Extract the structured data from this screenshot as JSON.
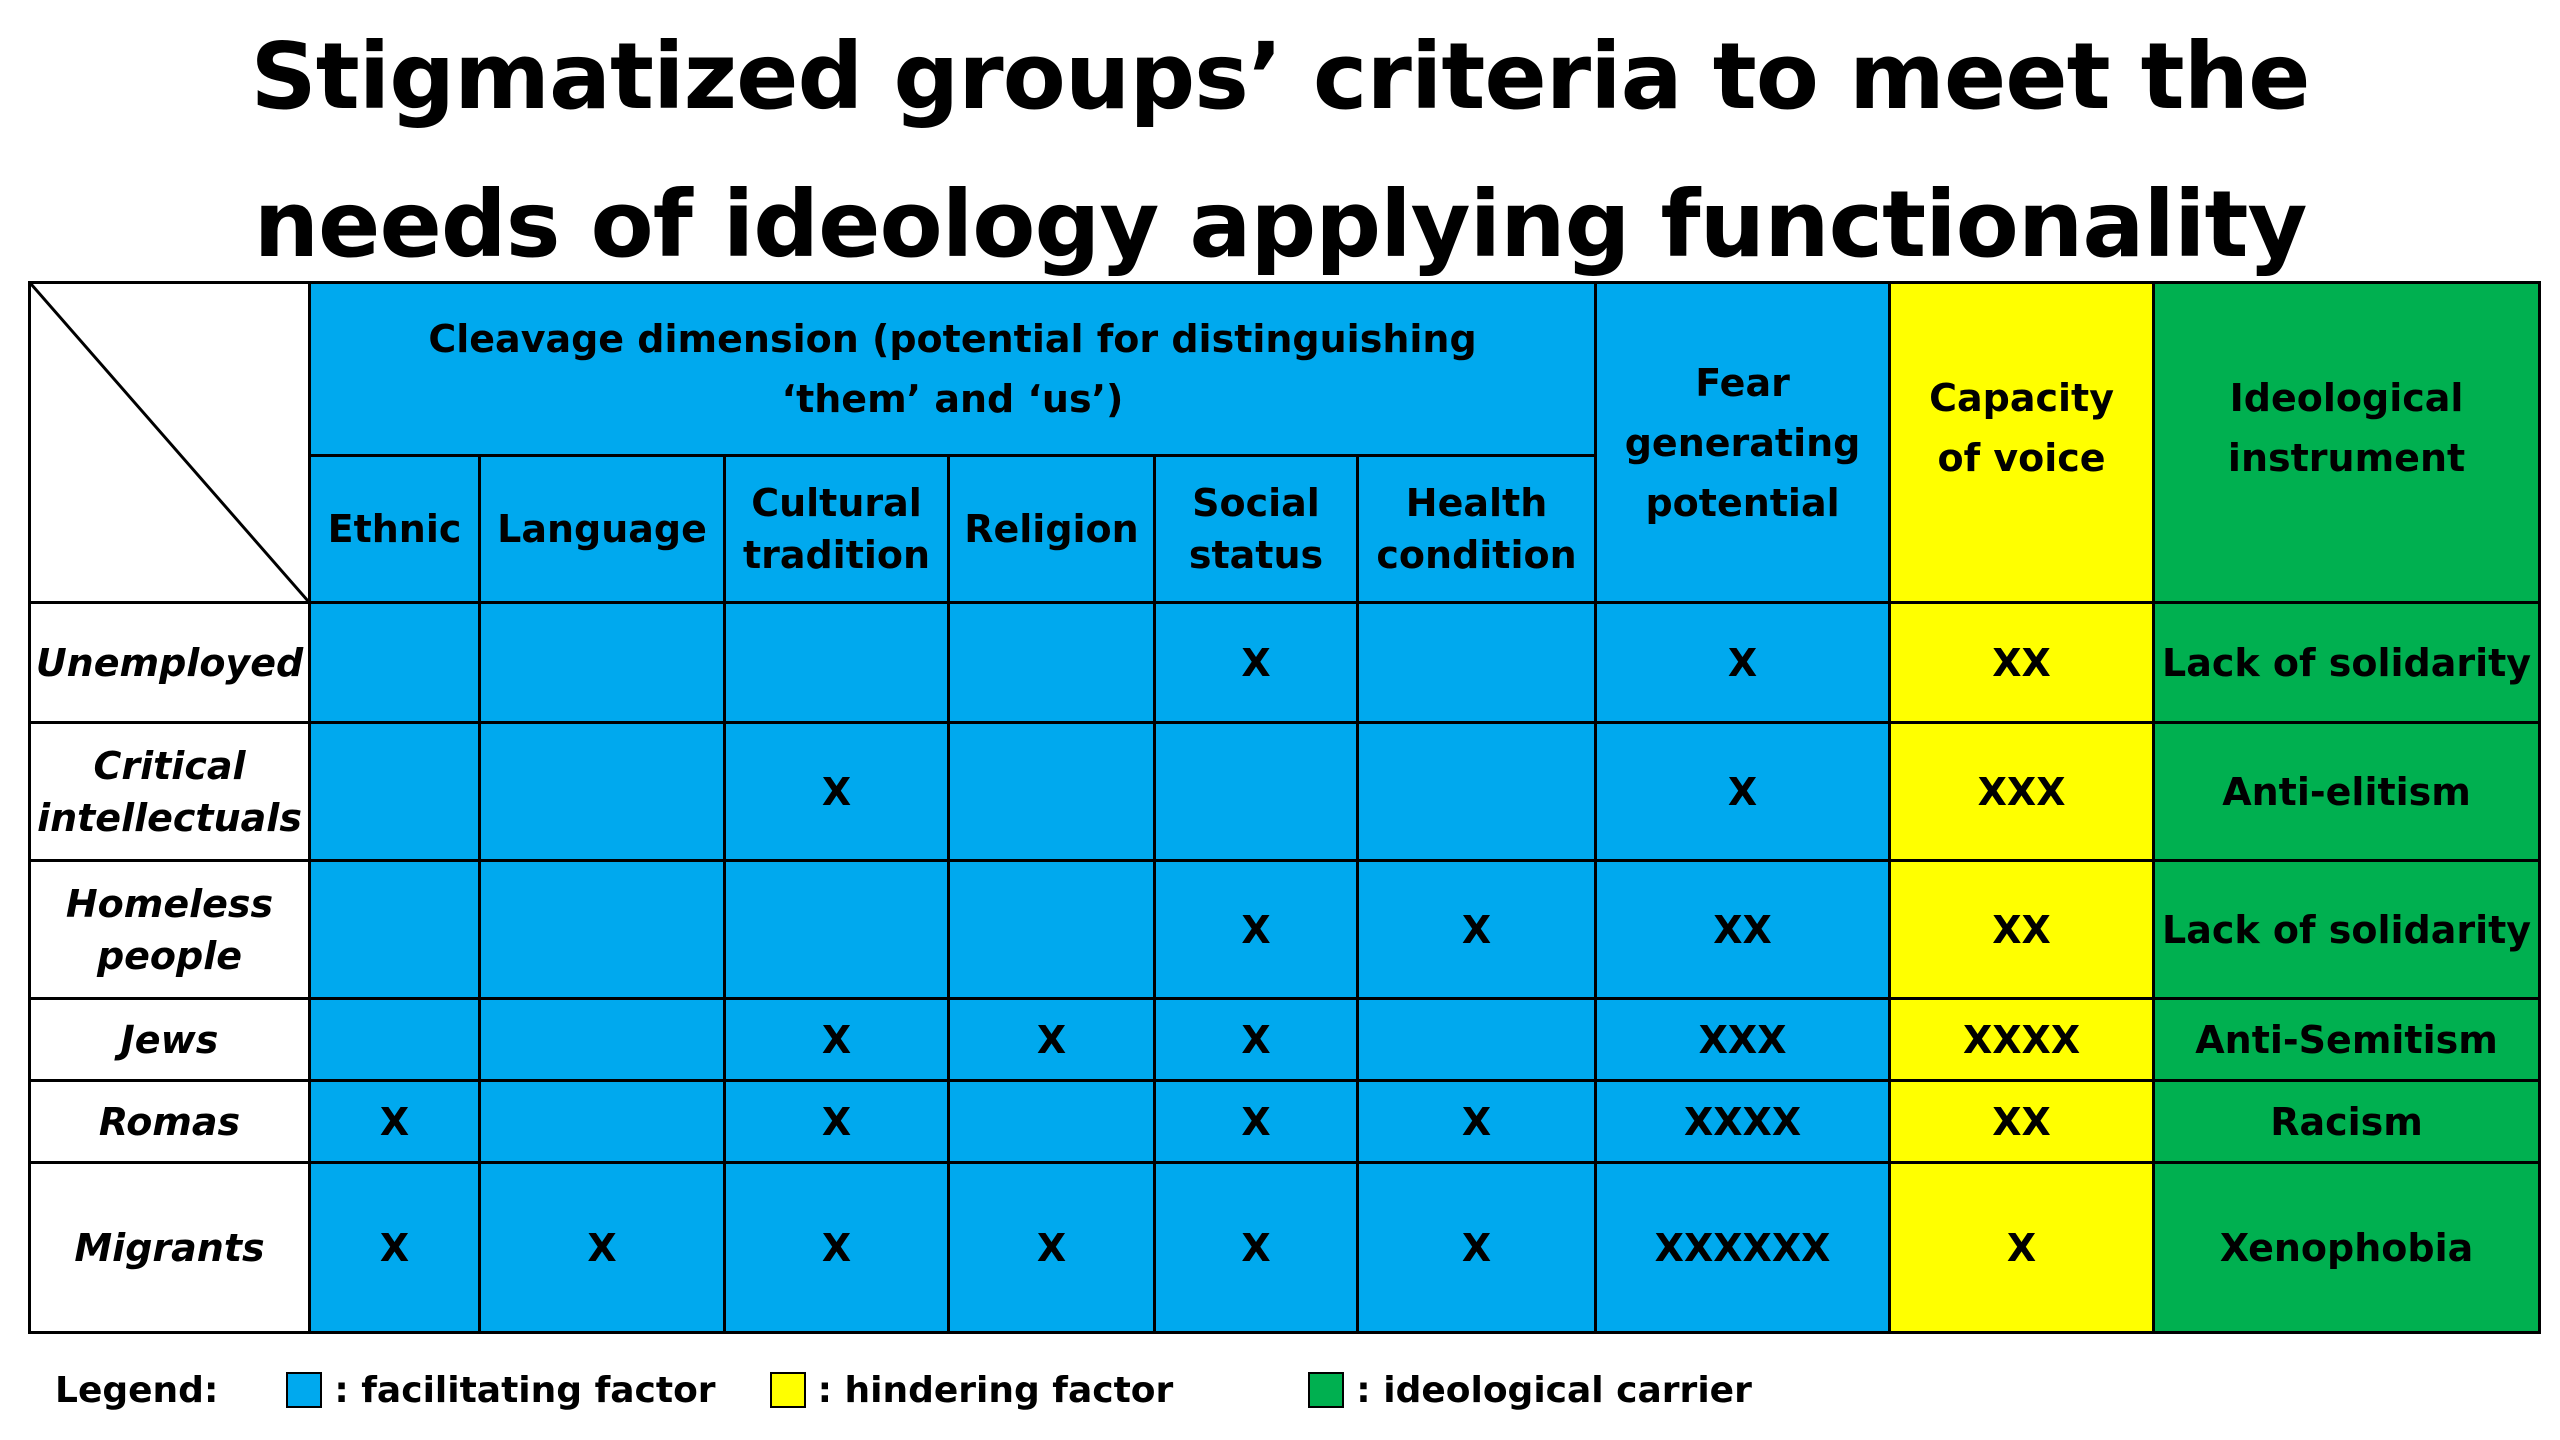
{
  "title": {
    "line1": "Stigmatized groups’ criteria to meet the",
    "line2": "needs of ideology applying functionality"
  },
  "header": {
    "cleavage": "Cleavage dimension (potential for distinguishing ‘them’ and ‘us’)",
    "sub": {
      "ethnic": "Ethnic",
      "language": "Language",
      "cultural": "Cultural tradition",
      "religion": "Religion",
      "social": "Social status",
      "health": "Health condition"
    },
    "fear": "Fear generating potential",
    "voice": "Capacity of voice",
    "instrument": "Ideological instrument"
  },
  "rows": [
    {
      "label": "Unemployed",
      "ethnic": "",
      "language": "",
      "cultural": "",
      "religion": "",
      "social": "X",
      "health": "",
      "fear": "X",
      "voice": "XX",
      "instrument": "Lack of solidarity"
    },
    {
      "label": "Critical intellectuals",
      "ethnic": "",
      "language": "",
      "cultural": "X",
      "religion": "",
      "social": "",
      "health": "",
      "fear": "X",
      "voice": "XXX",
      "instrument": "Anti-elitism"
    },
    {
      "label": "Homeless people",
      "ethnic": "",
      "language": "",
      "cultural": "",
      "religion": "",
      "social": "X",
      "health": "X",
      "fear": "XX",
      "voice": "XX",
      "instrument": "Lack of solidarity"
    },
    {
      "label": "Jews",
      "ethnic": "",
      "language": "",
      "cultural": "X",
      "religion": "X",
      "social": "X",
      "health": "",
      "fear": "XXX",
      "voice": "XXXX",
      "instrument": "Anti-Semitism"
    },
    {
      "label": "Romas",
      "ethnic": "X",
      "language": "",
      "cultural": "X",
      "religion": "",
      "social": "X",
      "health": "X",
      "fear": "XXXX",
      "voice": "XX",
      "instrument": "Racism"
    },
    {
      "label": "Migrants",
      "ethnic": "X",
      "language": "X",
      "cultural": "X",
      "religion": "X",
      "social": "X",
      "health": "X",
      "fear": "XXXXXX",
      "voice": "X",
      "instrument": "Xenophobia"
    }
  ],
  "legend": {
    "label": "Legend:",
    "items": [
      {
        "color": "#00a9ee",
        "text": ": facilitating factor"
      },
      {
        "color": "#ffff00",
        "text": ": hindering factor"
      },
      {
        "color": "#00b050",
        "text": ": ideological carrier"
      }
    ]
  }
}
